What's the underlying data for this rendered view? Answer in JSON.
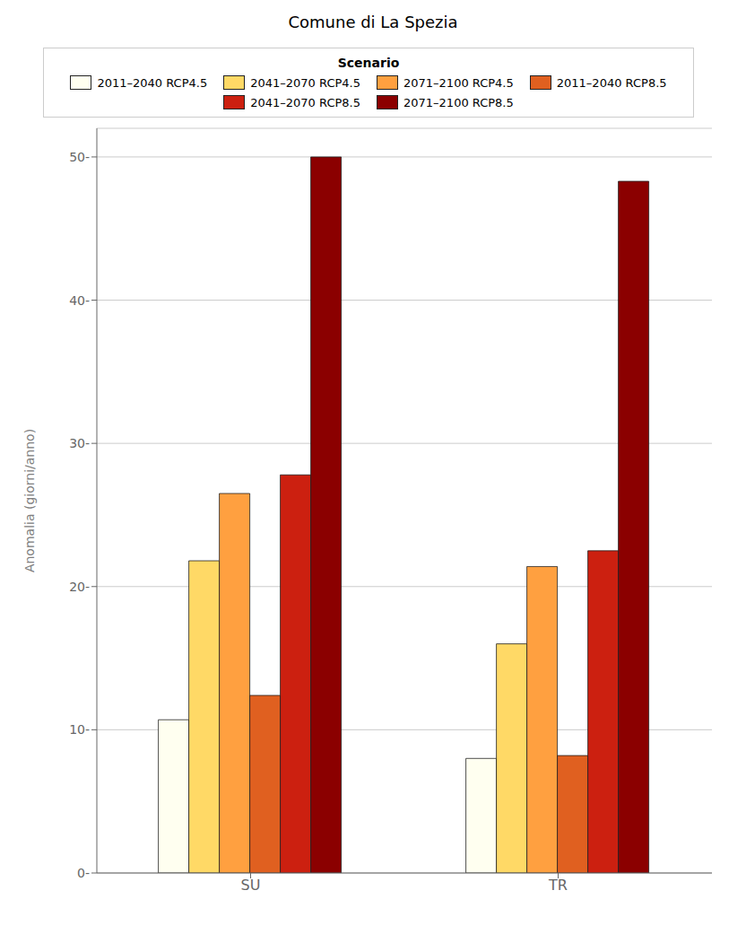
{
  "chart_data": {
    "type": "bar",
    "title": "Comune di La Spezia",
    "ylabel": "Anomalia (giorni/anno)",
    "legend_title": "Scenario",
    "categories": [
      "SU",
      "TR"
    ],
    "series": [
      {
        "name": "2011–2040 RCP4.5",
        "color": "#FFFFF0",
        "values": [
          10.7,
          8.0
        ]
      },
      {
        "name": "2041–2070 RCP4.5",
        "color": "#FFD966",
        "values": [
          21.8,
          16.0
        ]
      },
      {
        "name": "2071–2100 RCP4.5",
        "color": "#FFA040",
        "values": [
          26.5,
          21.4
        ]
      },
      {
        "name": "2011–2040 RCP8.5",
        "color": "#E06020",
        "values": [
          12.4,
          8.2
        ]
      },
      {
        "name": "2041–2070 RCP8.5",
        "color": "#CC2010",
        "values": [
          27.8,
          22.5
        ]
      },
      {
        "name": "2071–2100 RCP8.5",
        "color": "#8B0000",
        "values": [
          50.0,
          48.3
        ]
      }
    ],
    "ylim": [
      0,
      52
    ],
    "yticks": [
      {
        "value": 0,
        "label": "0-"
      },
      {
        "value": 10,
        "label": "10-"
      },
      {
        "value": 20,
        "label": "20-"
      },
      {
        "value": 30,
        "label": "30-"
      },
      {
        "value": 40,
        "label": "40-"
      },
      {
        "value": 50,
        "label": "50-"
      }
    ],
    "grid": true,
    "legend": "top"
  }
}
